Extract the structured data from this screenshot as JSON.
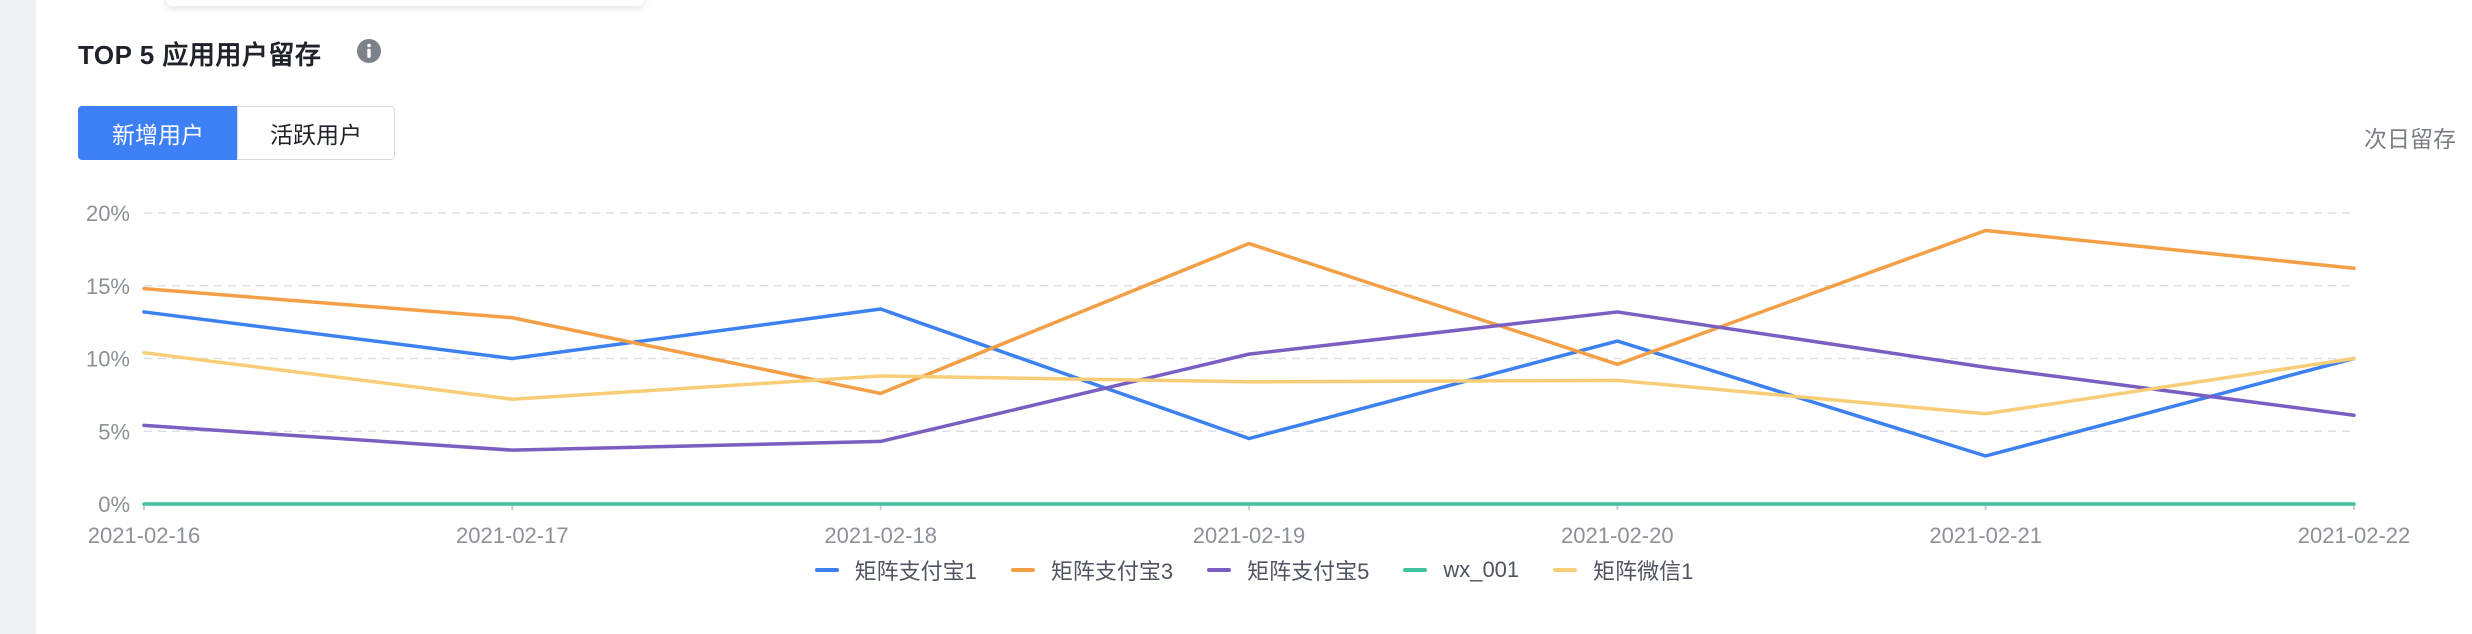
{
  "header": {
    "title": "TOP 5 应用用户留存",
    "info_icon": "info-circle-icon"
  },
  "tabs": [
    {
      "label": "新增用户",
      "active": true
    },
    {
      "label": "活跃用户",
      "active": false
    }
  ],
  "metric_label": "次日留存",
  "colors": {
    "accent": "#3d7ff5",
    "grid": "#dcdfe5",
    "axis": "#40c39c"
  },
  "chart_data": {
    "type": "line",
    "categories": [
      "2021-02-16",
      "2021-02-17",
      "2021-02-18",
      "2021-02-19",
      "2021-02-20",
      "2021-02-21",
      "2021-02-22"
    ],
    "y_ticks": [
      "0%",
      "5%",
      "10%",
      "15%",
      "20%"
    ],
    "ylim": [
      0,
      20
    ],
    "y_unit": "%",
    "grid": true,
    "legend_position": "bottom-center",
    "series": [
      {
        "name": "矩阵支付宝1",
        "color": "#3d80f0",
        "values": [
          13.2,
          10.0,
          13.4,
          4.5,
          11.2,
          3.3,
          10.0
        ]
      },
      {
        "name": "矩阵支付宝3",
        "color": "#f29f46",
        "values": [
          14.8,
          12.8,
          7.6,
          17.9,
          9.6,
          18.8,
          16.2
        ]
      },
      {
        "name": "矩阵支付宝5",
        "color": "#7a5ec2",
        "values": [
          5.4,
          3.7,
          4.3,
          10.3,
          13.2,
          9.4,
          6.1
        ]
      },
      {
        "name": "wx_001",
        "color": "#40c39c",
        "values": [
          0,
          0,
          0,
          0,
          0,
          0,
          0
        ]
      },
      {
        "name": "矩阵微信1",
        "color": "#f7cd78",
        "values": [
          10.4,
          7.2,
          8.8,
          8.4,
          8.5,
          6.2,
          10.0
        ]
      }
    ]
  }
}
